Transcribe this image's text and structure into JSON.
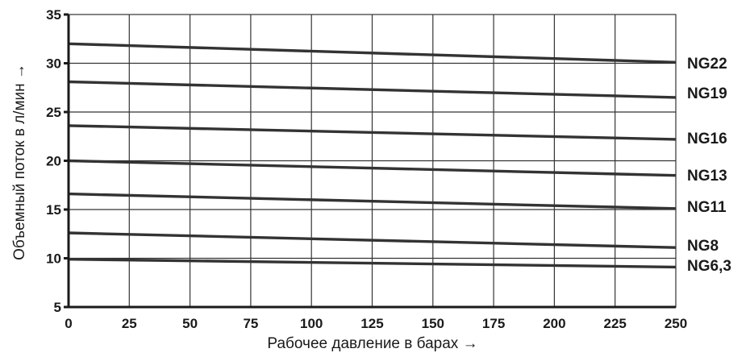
{
  "chart_data": {
    "type": "line",
    "xlabel": "Рабочее давление в барах →",
    "ylabel": "Объемный поток в л/мин →",
    "xlim": [
      0,
      250
    ],
    "ylim": [
      5,
      35
    ],
    "x_ticks": [
      "0",
      "25",
      "50",
      "75",
      "100",
      "125",
      "150",
      "175",
      "200",
      "225",
      "250"
    ],
    "y_ticks": [
      "5",
      "10",
      "15",
      "20",
      "25",
      "30",
      "35"
    ],
    "grid": true,
    "series": [
      {
        "name": "NG22",
        "x": [
          0,
          250
        ],
        "y": [
          32.0,
          30.1
        ]
      },
      {
        "name": "NG19",
        "x": [
          0,
          250
        ],
        "y": [
          28.1,
          26.5
        ]
      },
      {
        "name": "NG16",
        "x": [
          0,
          250
        ],
        "y": [
          23.6,
          22.2
        ]
      },
      {
        "name": "NG13",
        "x": [
          0,
          250
        ],
        "y": [
          20.0,
          18.5
        ]
      },
      {
        "name": "NG11",
        "x": [
          0,
          250
        ],
        "y": [
          16.6,
          15.1
        ]
      },
      {
        "name": "NG8",
        "x": [
          0,
          250
        ],
        "y": [
          12.6,
          11.1
        ]
      },
      {
        "name": "NG6,3",
        "x": [
          0,
          250
        ],
        "y": [
          9.9,
          9.1
        ]
      }
    ]
  }
}
